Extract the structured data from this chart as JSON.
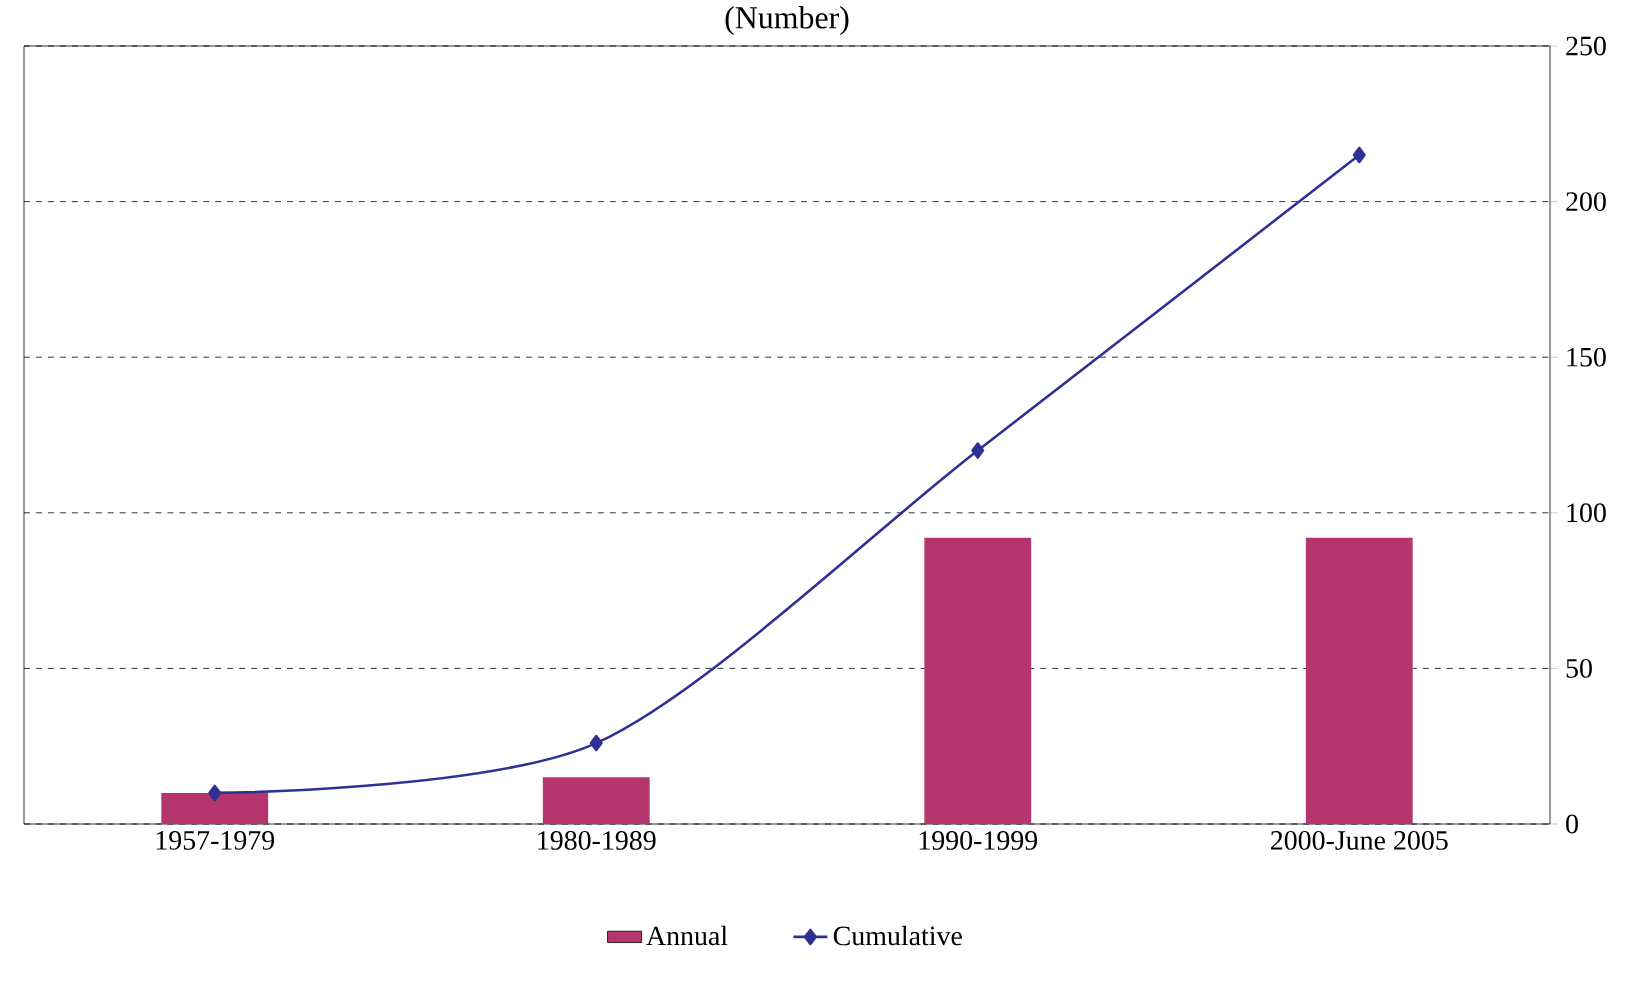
{
  "chart_data": {
    "type": "bar",
    "title": "(Number)",
    "categories": [
      "1957-1979",
      "1980-1989",
      "1990-1999",
      "2000-June 2005"
    ],
    "series": [
      {
        "name": "Annual",
        "color": "#b5366f",
        "values": [
          10,
          15,
          92,
          92
        ]
      },
      {
        "name": "Cumulative",
        "type": "line",
        "color": "#2e3192",
        "marker": "diamond",
        "values": [
          10,
          26,
          120,
          215
        ]
      }
    ],
    "ylim": [
      0,
      250
    ],
    "yticks": [
      0,
      50,
      100,
      150,
      200,
      250
    ],
    "grid": "y",
    "legend": "bottom"
  }
}
